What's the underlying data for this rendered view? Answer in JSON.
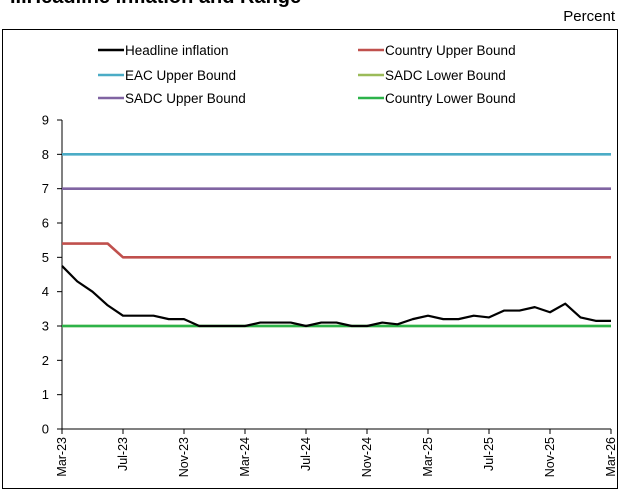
{
  "header": {
    "title": "...Headline Inflation and Range",
    "unit": "Percent"
  },
  "chart_data": {
    "type": "line",
    "title": "",
    "xlabel": "",
    "ylabel": "",
    "ylim": [
      0,
      9
    ],
    "yticks": [
      0,
      1,
      2,
      3,
      4,
      5,
      6,
      7,
      8,
      9
    ],
    "x_tick_labels": [
      "Mar-23",
      "Jul-23",
      "Nov-23",
      "Mar-24",
      "Jul-24",
      "Nov-24",
      "Mar-25",
      "Jul-25",
      "Nov-25",
      "Mar-26"
    ],
    "x_tick_months": [
      0,
      4,
      8,
      12,
      16,
      20,
      24,
      28,
      32,
      36
    ],
    "grid": false,
    "legend_position": "top",
    "series": [
      {
        "name": "Headline inflation",
        "color": "#000000",
        "months": [
          0,
          1,
          2,
          3,
          4,
          5,
          6,
          7,
          8,
          9,
          10,
          11,
          12,
          13,
          14,
          15,
          16,
          17,
          18,
          19,
          20,
          21,
          22,
          23,
          24,
          25,
          26,
          27,
          28,
          29,
          30,
          31,
          32,
          33,
          34,
          35,
          36
        ],
        "values": [
          4.75,
          4.3,
          4.0,
          3.6,
          3.3,
          3.3,
          3.3,
          3.2,
          3.2,
          3.0,
          3.0,
          3.0,
          3.0,
          3.1,
          3.1,
          3.1,
          3.0,
          3.1,
          3.1,
          3.0,
          3.0,
          3.1,
          3.05,
          3.2,
          3.3,
          3.2,
          3.2,
          3.3,
          3.25,
          3.45,
          3.45,
          3.55,
          3.4,
          3.65,
          3.25,
          3.15,
          3.15
        ]
      },
      {
        "name": "Country Upper Bound",
        "color": "#c0504d",
        "months": [
          0,
          3,
          4,
          36
        ],
        "values": [
          5.4,
          5.4,
          5.0,
          5.0
        ]
      },
      {
        "name": "EAC Upper Bound",
        "color": "#4bacc6",
        "months": [
          0,
          36
        ],
        "values": [
          8,
          8
        ]
      },
      {
        "name": "SADC Lower Bound",
        "color": "#9bbb59",
        "months": [
          0,
          36
        ],
        "values": [
          3,
          3
        ]
      },
      {
        "name": "SADC Upper Bound",
        "color": "#8064a2",
        "months": [
          0,
          36
        ],
        "values": [
          7,
          7
        ]
      },
      {
        "name": "Country Lower Bound",
        "color": "#2db34a",
        "months": [
          0,
          36
        ],
        "values": [
          3,
          3
        ]
      }
    ]
  }
}
